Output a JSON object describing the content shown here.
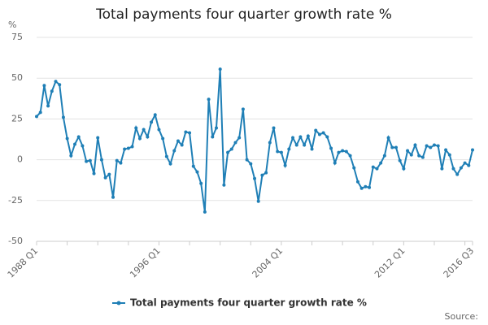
{
  "chart_data": {
    "type": "line",
    "title": "Total payments four quarter growth rate %",
    "y_unit": "%",
    "source": "Source:",
    "categories": [
      "1988 Q1",
      null,
      null,
      null,
      null,
      null,
      null,
      null,
      null,
      null,
      null,
      null,
      null,
      null,
      null,
      null,
      null,
      null,
      null,
      null,
      null,
      null,
      null,
      null,
      null,
      null,
      null,
      null,
      null,
      null,
      null,
      null,
      "1996 Q1",
      null,
      null,
      null,
      null,
      null,
      null,
      null,
      null,
      null,
      null,
      null,
      null,
      null,
      null,
      null,
      null,
      null,
      null,
      null,
      null,
      null,
      null,
      null,
      null,
      null,
      null,
      null,
      null,
      null,
      null,
      null,
      "2004 Q1",
      null,
      null,
      null,
      null,
      null,
      null,
      null,
      null,
      null,
      null,
      null,
      null,
      null,
      null,
      null,
      null,
      null,
      null,
      null,
      null,
      null,
      null,
      null,
      null,
      null,
      null,
      null,
      null,
      null,
      null,
      null,
      "2012 Q1",
      null,
      null,
      null,
      null,
      null,
      null,
      null,
      null,
      null,
      null,
      null,
      null,
      null,
      null,
      null,
      null,
      null,
      "2016 Q3"
    ],
    "series": [
      {
        "name": "Total payments four quarter growth rate %",
        "color": "#1f7fb6",
        "values": [
          26.5,
          29,
          45.5,
          33,
          42,
          48,
          46,
          26,
          13,
          2.5,
          9.5,
          14,
          8.5,
          -1,
          -0.5,
          -8.5,
          13.5,
          0,
          -11,
          -9,
          -23,
          -0.5,
          -2,
          6.5,
          7,
          8,
          19.5,
          13,
          18.5,
          14,
          23,
          27.5,
          18.5,
          13,
          2,
          -2.5,
          5.5,
          11.5,
          9,
          17,
          16.5,
          -4,
          -7.5,
          -14.5,
          -32,
          37,
          14,
          19.5,
          55.5,
          -15.5,
          4.5,
          6.5,
          10.5,
          13.5,
          31,
          0,
          -2.5,
          -11.5,
          -25.5,
          -9.5,
          -8,
          10.5,
          19.5,
          5,
          4.5,
          -3.5,
          6.5,
          13.5,
          9,
          14,
          9,
          14.5,
          6.5,
          18,
          15.5,
          16.5,
          14,
          7,
          -2,
          4.5,
          5.5,
          5,
          2.5,
          -5,
          -13.5,
          -17.5,
          -16.5,
          -17,
          -4.5,
          -5.5,
          -2,
          2.5,
          13.5,
          7.5,
          7.5,
          -0.5,
          -5.5,
          5.5,
          3,
          9,
          2.5,
          1.5,
          8.5,
          7.5,
          9,
          8.5,
          -5.5,
          6,
          3,
          -5.5,
          -9,
          -5,
          -2,
          -3.5,
          6
        ]
      }
    ],
    "ylim": [
      -50,
      75
    ],
    "yticks": [
      -50,
      -25,
      0,
      25,
      50,
      75
    ],
    "grid": true,
    "legend": "bottom"
  }
}
